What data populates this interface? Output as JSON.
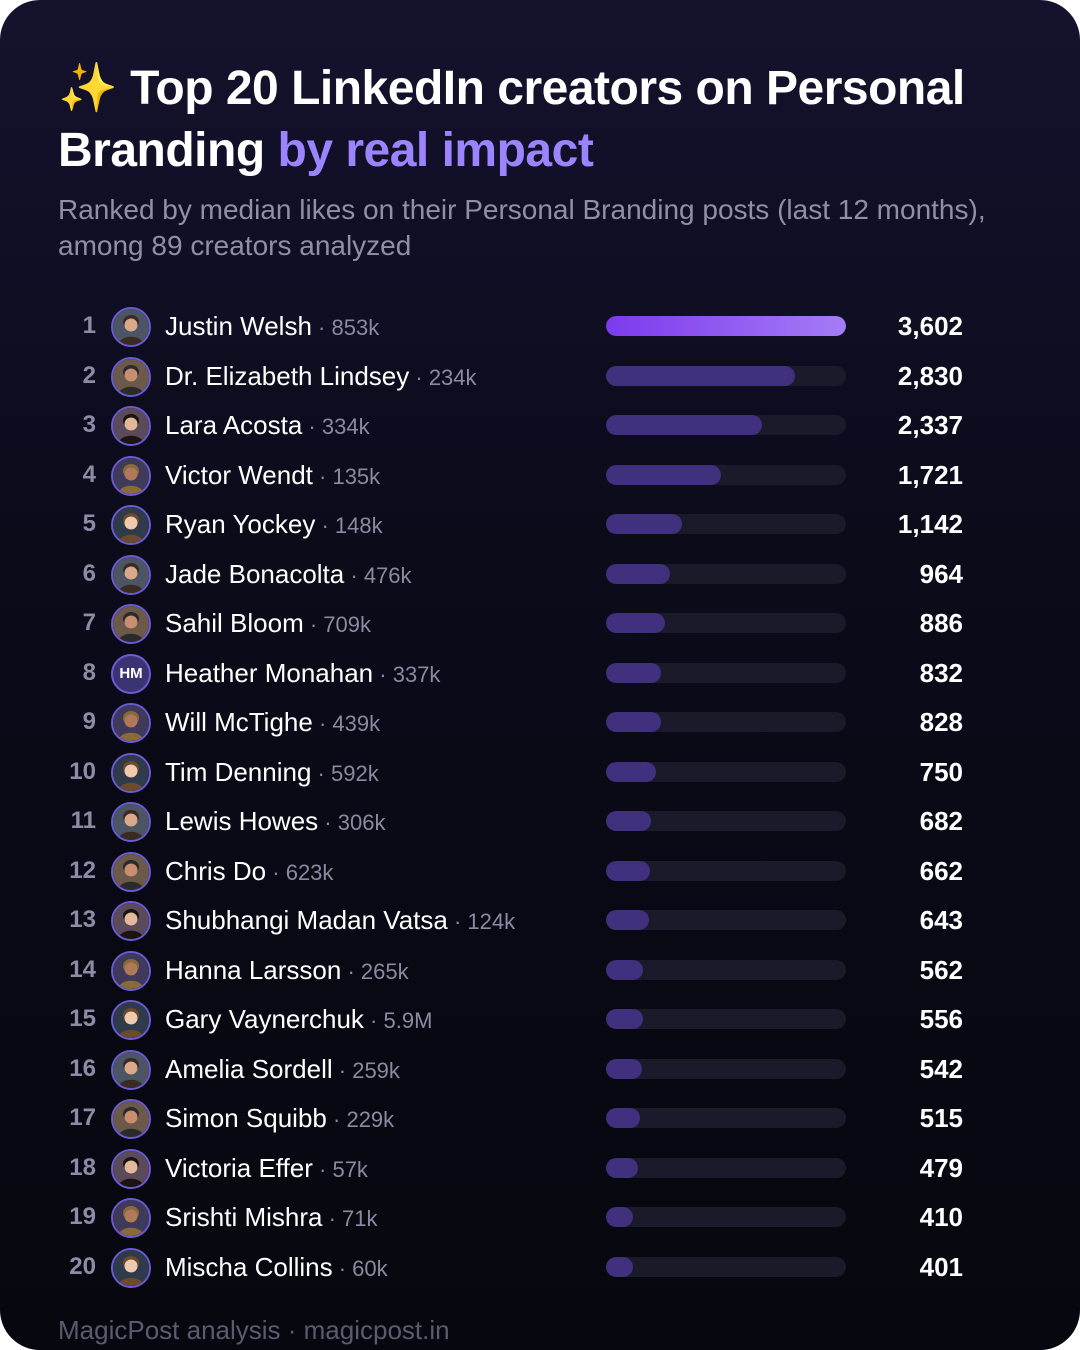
{
  "header": {
    "emoji": "✨",
    "title_main": "Top 20 LinkedIn creators on Personal Branding",
    "title_accent": "by real impact",
    "subtitle": "Ranked by median likes on their Personal Branding posts (last 12 months), among 89 creators analyzed"
  },
  "footer": "MagicPost analysis · magicpost.in",
  "colors": {
    "background": "#0b0b1a",
    "accent": "#9d84ff",
    "bar_top": "#8b5cf6",
    "bar": "#40307d",
    "track": "#1a1a2a"
  },
  "chart_data": {
    "type": "bar",
    "orientation": "horizontal",
    "title": "Top 20 LinkedIn creators on Personal Branding by real impact",
    "subtitle": "Ranked by median likes on their Personal Branding posts (last 12 months), among 89 creators analyzed",
    "xlim": [
      0,
      3602
    ],
    "grid": false,
    "rows": [
      {
        "rank": "1",
        "name": "Justin Welsh",
        "followers": "853k",
        "value": 3602,
        "label": "3,602",
        "avatar": "photo"
      },
      {
        "rank": "2",
        "name": "Dr. Elizabeth Lindsey",
        "followers": "234k",
        "value": 2830,
        "label": "2,830",
        "avatar": "photo"
      },
      {
        "rank": "3",
        "name": "Lara Acosta",
        "followers": "334k",
        "value": 2337,
        "label": "2,337",
        "avatar": "photo"
      },
      {
        "rank": "4",
        "name": "Victor Wendt",
        "followers": "135k",
        "value": 1721,
        "label": "1,721",
        "avatar": "photo"
      },
      {
        "rank": "5",
        "name": "Ryan Yockey",
        "followers": "148k",
        "value": 1142,
        "label": "1,142",
        "avatar": "photo"
      },
      {
        "rank": "6",
        "name": "Jade Bonacolta",
        "followers": "476k",
        "value": 964,
        "label": "964",
        "avatar": "photo"
      },
      {
        "rank": "7",
        "name": "Sahil Bloom",
        "followers": "709k",
        "value": 886,
        "label": "886",
        "avatar": "photo"
      },
      {
        "rank": "8",
        "name": "Heather Monahan",
        "followers": "337k",
        "value": 832,
        "label": "832",
        "avatar": "initials",
        "initials": "HM"
      },
      {
        "rank": "9",
        "name": "Will McTighe",
        "followers": "439k",
        "value": 828,
        "label": "828",
        "avatar": "photo"
      },
      {
        "rank": "10",
        "name": "Tim Denning",
        "followers": "592k",
        "value": 750,
        "label": "750",
        "avatar": "photo"
      },
      {
        "rank": "11",
        "name": "Lewis Howes",
        "followers": "306k",
        "value": 682,
        "label": "682",
        "avatar": "photo"
      },
      {
        "rank": "12",
        "name": "Chris Do",
        "followers": "623k",
        "value": 662,
        "label": "662",
        "avatar": "photo"
      },
      {
        "rank": "13",
        "name": "Shubhangi Madan Vatsa",
        "followers": "124k",
        "value": 643,
        "label": "643",
        "avatar": "photo"
      },
      {
        "rank": "14",
        "name": "Hanna Larsson",
        "followers": "265k",
        "value": 562,
        "label": "562",
        "avatar": "photo"
      },
      {
        "rank": "15",
        "name": "Gary Vaynerchuk",
        "followers": "5.9M",
        "value": 556,
        "label": "556",
        "avatar": "photo"
      },
      {
        "rank": "16",
        "name": "Amelia Sordell",
        "followers": "259k",
        "value": 542,
        "label": "542",
        "avatar": "photo"
      },
      {
        "rank": "17",
        "name": "Simon Squibb",
        "followers": "229k",
        "value": 515,
        "label": "515",
        "avatar": "photo"
      },
      {
        "rank": "18",
        "name": "Victoria Effer",
        "followers": "57k",
        "value": 479,
        "label": "479",
        "avatar": "photo"
      },
      {
        "rank": "19",
        "name": "Srishti Mishra",
        "followers": "71k",
        "value": 410,
        "label": "410",
        "avatar": "photo"
      },
      {
        "rank": "20",
        "name": "Mischa Collins",
        "followers": "60k",
        "value": 401,
        "label": "401",
        "avatar": "photo"
      }
    ]
  }
}
